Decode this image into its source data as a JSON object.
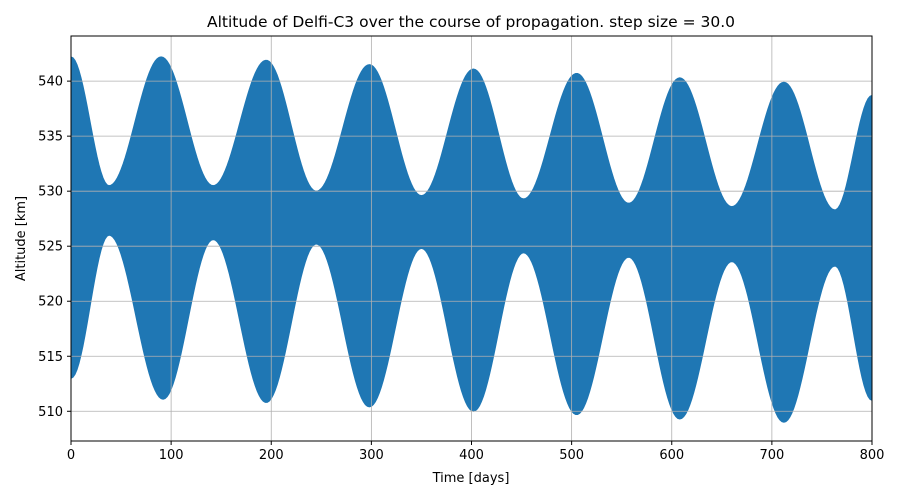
{
  "chart_data": {
    "type": "area",
    "title": "Altitude of Delfi-C3 over the course of propagation. step size = 30.0",
    "xlabel": "Time [days]",
    "ylabel": "Altitude [km]",
    "xlim": [
      0,
      800
    ],
    "ylim": [
      507.3,
      544.1
    ],
    "xticks": [
      0,
      100,
      200,
      300,
      400,
      500,
      600,
      700,
      800
    ],
    "yticks": [
      510,
      515,
      520,
      525,
      530,
      535,
      540
    ],
    "grid": true,
    "legend": "none",
    "color": "#1f77b4",
    "envelope_upper": {
      "x": [
        0,
        38,
        90,
        142,
        195,
        245,
        298,
        350,
        402,
        452,
        505,
        557,
        608,
        660,
        712,
        763,
        800
      ],
      "y": [
        542.2,
        530.5,
        542.2,
        530.5,
        541.9,
        530.0,
        541.5,
        529.6,
        541.1,
        529.3,
        540.7,
        528.9,
        540.3,
        528.6,
        539.9,
        528.3,
        538.7
      ]
    },
    "envelope_lower": {
      "x": [
        0,
        38,
        92,
        142,
        195,
        245,
        298,
        350,
        402,
        452,
        505,
        557,
        608,
        660,
        712,
        763,
        800
      ],
      "y": [
        513.0,
        526.0,
        511.1,
        525.6,
        510.8,
        525.2,
        510.4,
        524.8,
        510.0,
        524.4,
        509.7,
        524.0,
        509.3,
        523.6,
        509.0,
        523.2,
        511.0
      ]
    }
  }
}
